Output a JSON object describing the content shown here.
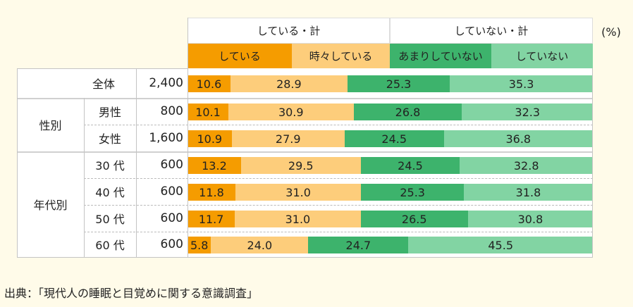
{
  "unit_label": "(%)",
  "group_headers": [
    "している・計",
    "していない・計"
  ],
  "colors": {
    "している": "#f59c00",
    "時々している": "#fdcd7b",
    "あまりしていない": "#3db36c",
    "していない": "#82d4a3"
  },
  "source": "出典：「現代人の睡眠と目覚めに関する意識調査」",
  "chart_data": {
    "type": "bar",
    "stacked": true,
    "orientation": "horizontal",
    "unit": "%",
    "series_names": [
      "している",
      "時々している",
      "あまりしていない",
      "していない"
    ],
    "groups": [
      "全体",
      "性別",
      "年代別"
    ],
    "rows": [
      {
        "group": "",
        "label": "全体",
        "n": "2,400",
        "values": [
          10.6,
          28.9,
          25.3,
          35.3
        ]
      },
      {
        "group": "性別",
        "label": "男性",
        "n": "800",
        "values": [
          10.1,
          30.9,
          26.8,
          32.3
        ]
      },
      {
        "group": "性別",
        "label": "女性",
        "n": "1,600",
        "values": [
          10.9,
          27.9,
          24.5,
          36.8
        ]
      },
      {
        "group": "年代別",
        "label": "30 代",
        "n": "600",
        "values": [
          13.2,
          29.5,
          24.5,
          32.8
        ]
      },
      {
        "group": "年代別",
        "label": "40 代",
        "n": "600",
        "values": [
          11.8,
          31.0,
          25.3,
          31.8
        ]
      },
      {
        "group": "年代別",
        "label": "50 代",
        "n": "600",
        "values": [
          11.7,
          31.0,
          26.5,
          30.8
        ]
      },
      {
        "group": "年代別",
        "label": "60 代",
        "n": "600",
        "values": [
          5.8,
          24.0,
          24.7,
          45.5
        ]
      }
    ],
    "xlim": [
      0,
      100
    ]
  }
}
